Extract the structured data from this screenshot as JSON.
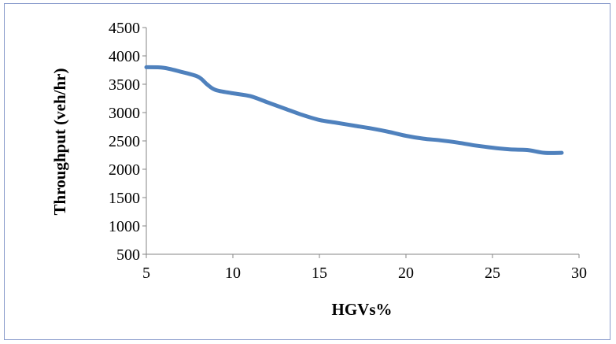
{
  "chart_data": {
    "type": "line",
    "title": "",
    "xlabel": "HGVs%",
    "ylabel": "Throughput (veh/hr)",
    "xlim": [
      5,
      30
    ],
    "ylim": [
      500,
      4500
    ],
    "xticks": [
      5,
      10,
      15,
      20,
      25,
      30
    ],
    "yticks": [
      500,
      1000,
      1500,
      2000,
      2500,
      3000,
      3500,
      4000,
      4500
    ],
    "grid": false,
    "legend": "none",
    "series": [
      {
        "color": "#4f81bd",
        "x": [
          5,
          6,
          7,
          8,
          8.5,
          9,
          10,
          11,
          12,
          13,
          14,
          15,
          16,
          17,
          18,
          19,
          20,
          21,
          22,
          23,
          24,
          25,
          26,
          27,
          28,
          29
        ],
        "y": [
          3800,
          3790,
          3720,
          3630,
          3500,
          3400,
          3340,
          3290,
          3180,
          3070,
          2960,
          2870,
          2820,
          2770,
          2720,
          2660,
          2590,
          2540,
          2510,
          2470,
          2420,
          2380,
          2350,
          2340,
          2290,
          2290
        ]
      }
    ]
  }
}
